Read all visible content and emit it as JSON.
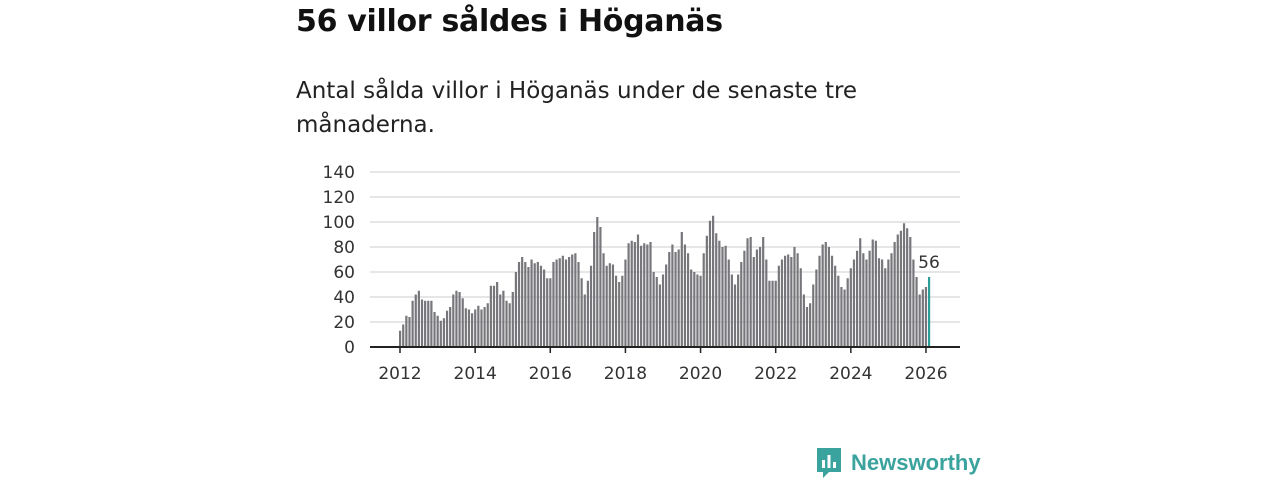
{
  "title": "56 villor såldes i Höganäs",
  "subtitle": "Antal sålda villor i Höganäs under de senaste tre månaderna.",
  "chart_data": {
    "type": "bar",
    "start": "2012-01",
    "frequency": "monthly",
    "values": [
      13,
      18,
      25,
      24,
      37,
      42,
      45,
      38,
      37,
      37,
      37,
      28,
      25,
      21,
      23,
      29,
      32,
      42,
      45,
      44,
      39,
      31,
      30,
      27,
      30,
      33,
      30,
      32,
      35,
      49,
      49,
      52,
      42,
      45,
      37,
      35,
      44,
      60,
      68,
      72,
      68,
      64,
      70,
      67,
      68,
      65,
      62,
      55,
      55,
      68,
      70,
      71,
      73,
      70,
      72,
      74,
      75,
      68,
      55,
      42,
      53,
      65,
      92,
      104,
      96,
      75,
      65,
      67,
      66,
      57,
      52,
      57,
      70,
      83,
      85,
      84,
      90,
      81,
      83,
      82,
      84,
      60,
      56,
      50,
      58,
      66,
      76,
      82,
      76,
      78,
      92,
      82,
      75,
      62,
      60,
      58,
      57,
      75,
      89,
      101,
      105,
      91,
      85,
      80,
      81,
      70,
      58,
      50,
      58,
      68,
      77,
      87,
      88,
      72,
      78,
      80,
      88,
      70,
      53,
      53,
      53,
      65,
      70,
      73,
      74,
      72,
      80,
      75,
      63,
      42,
      32,
      35,
      50,
      62,
      73,
      82,
      84,
      80,
      73,
      65,
      57,
      48,
      46,
      55,
      63,
      70,
      77,
      87,
      75,
      70,
      77,
      86,
      85,
      71,
      70,
      63,
      70,
      75,
      84,
      90,
      93,
      99,
      95,
      88,
      70,
      56,
      42,
      46,
      48,
      56
    ],
    "highlight_label": "56",
    "ylim": [
      0,
      140
    ],
    "yticks": [
      "0",
      "20",
      "40",
      "60",
      "80",
      "100",
      "120",
      "140"
    ],
    "xticks": [
      "2012",
      "2014",
      "2016",
      "2018",
      "2020",
      "2022",
      "2024",
      "2026"
    ],
    "grid": true,
    "colors": {
      "bar": "#76767b",
      "highlight": "#2a9d96",
      "grid": "#dddddd",
      "axis": "#222222"
    }
  },
  "logo": {
    "text": "Newsworthy",
    "color": "#3aa39e"
  }
}
